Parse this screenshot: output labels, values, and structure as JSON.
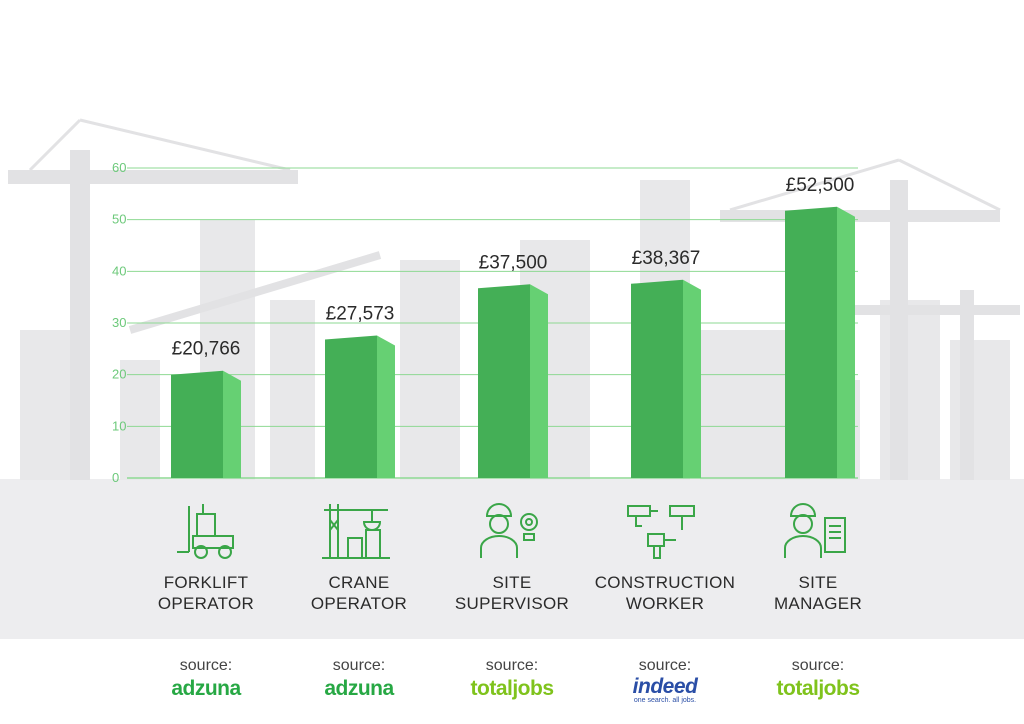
{
  "chart_data": {
    "type": "bar",
    "categories": [
      [
        "FORKLIFT",
        "OPERATOR"
      ],
      [
        "CRANE",
        "OPERATOR"
      ],
      [
        "SITE",
        "SUPERVISOR"
      ],
      [
        "CONSTRUCTION",
        "WORKER"
      ],
      [
        "SITE",
        "MANAGER"
      ]
    ],
    "values": [
      20766,
      27573,
      37500,
      38367,
      52500
    ],
    "value_labels": [
      "£20,766",
      "£27,573",
      "£37,500",
      "£38,367",
      "£52,500"
    ],
    "y_ticks": [
      "0",
      "10",
      "20",
      "30",
      "40",
      "50",
      "60"
    ],
    "ylim": [
      0,
      60000
    ],
    "tick_step": 10000,
    "grid": true,
    "colors": {
      "bar_front": "#44af56",
      "bar_side": "#66d073",
      "grid": "#8ed993",
      "tick": "#6cc97a"
    }
  },
  "icons": [
    "forklift-icon",
    "crane-icon",
    "supervisor-icon",
    "tools-icon",
    "manager-icon"
  ],
  "sources": [
    {
      "label": "source:",
      "logo": "adzuna",
      "sub": ""
    },
    {
      "label": "source:",
      "logo": "adzuna",
      "sub": ""
    },
    {
      "label": "source:",
      "logo": "totaljobs",
      "sub": ""
    },
    {
      "label": "source:",
      "logo": "indeed",
      "sub": "one search. all jobs."
    },
    {
      "label": "source:",
      "logo": "totaljobs",
      "sub": ""
    }
  ]
}
